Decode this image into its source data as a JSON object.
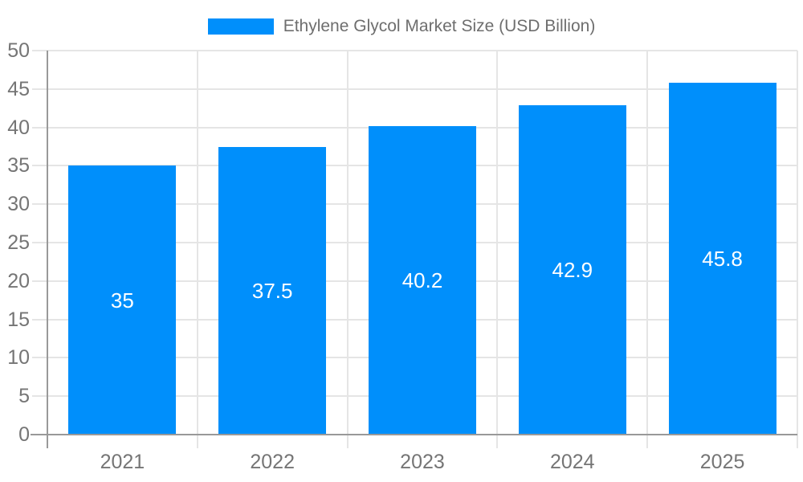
{
  "legend": {
    "label": "Ethylene Glycol Market Size (USD Billion)"
  },
  "chart_data": {
    "type": "bar",
    "title": "Ethylene Glycol Market Size (USD Billion)",
    "series_name": "Ethylene Glycol Market Size (USD Billion)",
    "categories": [
      "2021",
      "2022",
      "2023",
      "2024",
      "2025"
    ],
    "values": [
      35,
      37.5,
      40.2,
      42.9,
      45.8
    ],
    "value_labels": [
      "35",
      "37.5",
      "40.2",
      "42.9",
      "45.8"
    ],
    "xlabel": "",
    "ylabel": "",
    "ylim": [
      0,
      50
    ],
    "ytick_step": 5,
    "y_ticks": [
      0,
      5,
      10,
      15,
      20,
      25,
      30,
      35,
      40,
      45,
      50
    ],
    "grid": "horizontal lines at every y tick, vertical lines at category band boundaries",
    "legend_position": "top-center",
    "bar_label_position": "inside-center",
    "colors": {
      "bar": "#008FFB",
      "axis": "#999999",
      "grid": "#E5E5E5",
      "tick_label": "#757575",
      "bar_label": "#FFFFFF",
      "legend_text": "#6E6E6E",
      "background": "#FFFFFF"
    }
  }
}
